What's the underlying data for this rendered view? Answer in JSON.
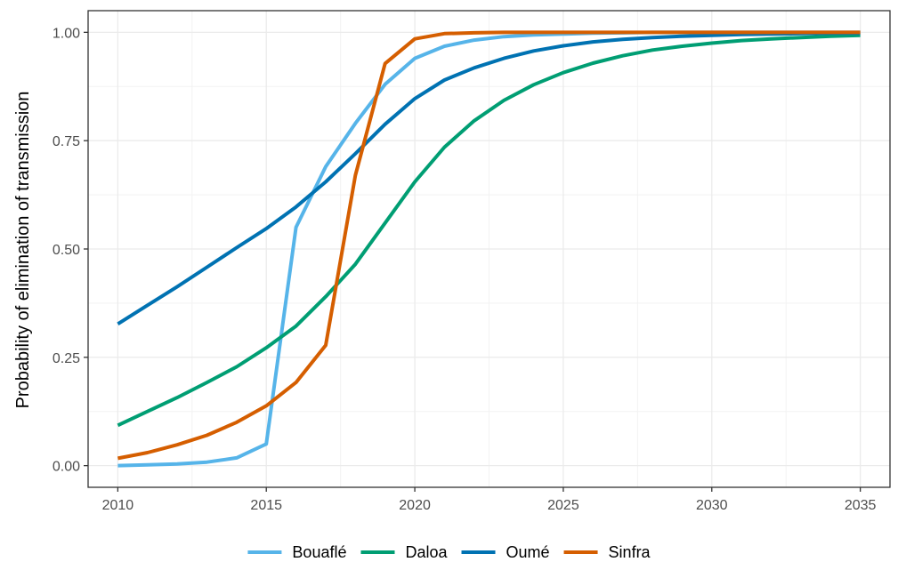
{
  "chart_data": {
    "type": "line",
    "title": "",
    "xlabel": "",
    "ylabel": "Probability of elimination of transmission",
    "xlim": [
      2009,
      2036
    ],
    "ylim": [
      -0.05,
      1.05
    ],
    "x_ticks": [
      2010,
      2015,
      2020,
      2025,
      2030,
      2035
    ],
    "x_tick_labels": [
      "2010",
      "2015",
      "2020",
      "2025",
      "2030",
      "2035"
    ],
    "y_ticks": [
      0,
      0.25,
      0.5,
      0.75,
      1
    ],
    "y_tick_labels": [
      "0.00",
      "0.25",
      "0.50",
      "0.75",
      "1.00"
    ],
    "grid": true,
    "legend_position": "bottom",
    "x": [
      2010,
      2011,
      2012,
      2013,
      2014,
      2015,
      2016,
      2017,
      2018,
      2019,
      2020,
      2021,
      2022,
      2023,
      2024,
      2025,
      2026,
      2027,
      2028,
      2029,
      2030,
      2031,
      2032,
      2033,
      2034,
      2035
    ],
    "series": [
      {
        "name": "Bouaflé",
        "color": "#56B4E9",
        "values": [
          0.0,
          0.002,
          0.004,
          0.008,
          0.018,
          0.05,
          0.55,
          0.69,
          0.79,
          0.88,
          0.94,
          0.968,
          0.982,
          0.99,
          0.994,
          0.996,
          0.998,
          0.999,
          1.0,
          1.0,
          1.0,
          1.0,
          1.0,
          1.0,
          1.0,
          1.0
        ]
      },
      {
        "name": "Daloa",
        "color": "#009E73",
        "values": [
          0.093,
          0.125,
          0.157,
          0.192,
          0.228,
          0.272,
          0.322,
          0.39,
          0.465,
          0.56,
          0.655,
          0.735,
          0.796,
          0.843,
          0.879,
          0.907,
          0.929,
          0.946,
          0.959,
          0.968,
          0.975,
          0.981,
          0.985,
          0.988,
          0.991,
          0.993
        ]
      },
      {
        "name": "Oumé",
        "color": "#0072B2",
        "values": [
          0.327,
          0.37,
          0.413,
          0.458,
          0.503,
          0.547,
          0.597,
          0.655,
          0.72,
          0.788,
          0.847,
          0.89,
          0.918,
          0.94,
          0.957,
          0.969,
          0.978,
          0.984,
          0.988,
          0.991,
          0.993,
          0.995,
          0.996,
          0.997,
          0.998,
          0.998
        ]
      },
      {
        "name": "Sinfra",
        "color": "#D55E00",
        "values": [
          0.017,
          0.03,
          0.048,
          0.07,
          0.1,
          0.138,
          0.192,
          0.278,
          0.67,
          0.928,
          0.985,
          0.997,
          0.999,
          1.0,
          1.0,
          1.0,
          1.0,
          1.0,
          1.0,
          1.0,
          1.0,
          1.0,
          1.0,
          1.0,
          1.0,
          1.0
        ]
      }
    ]
  }
}
